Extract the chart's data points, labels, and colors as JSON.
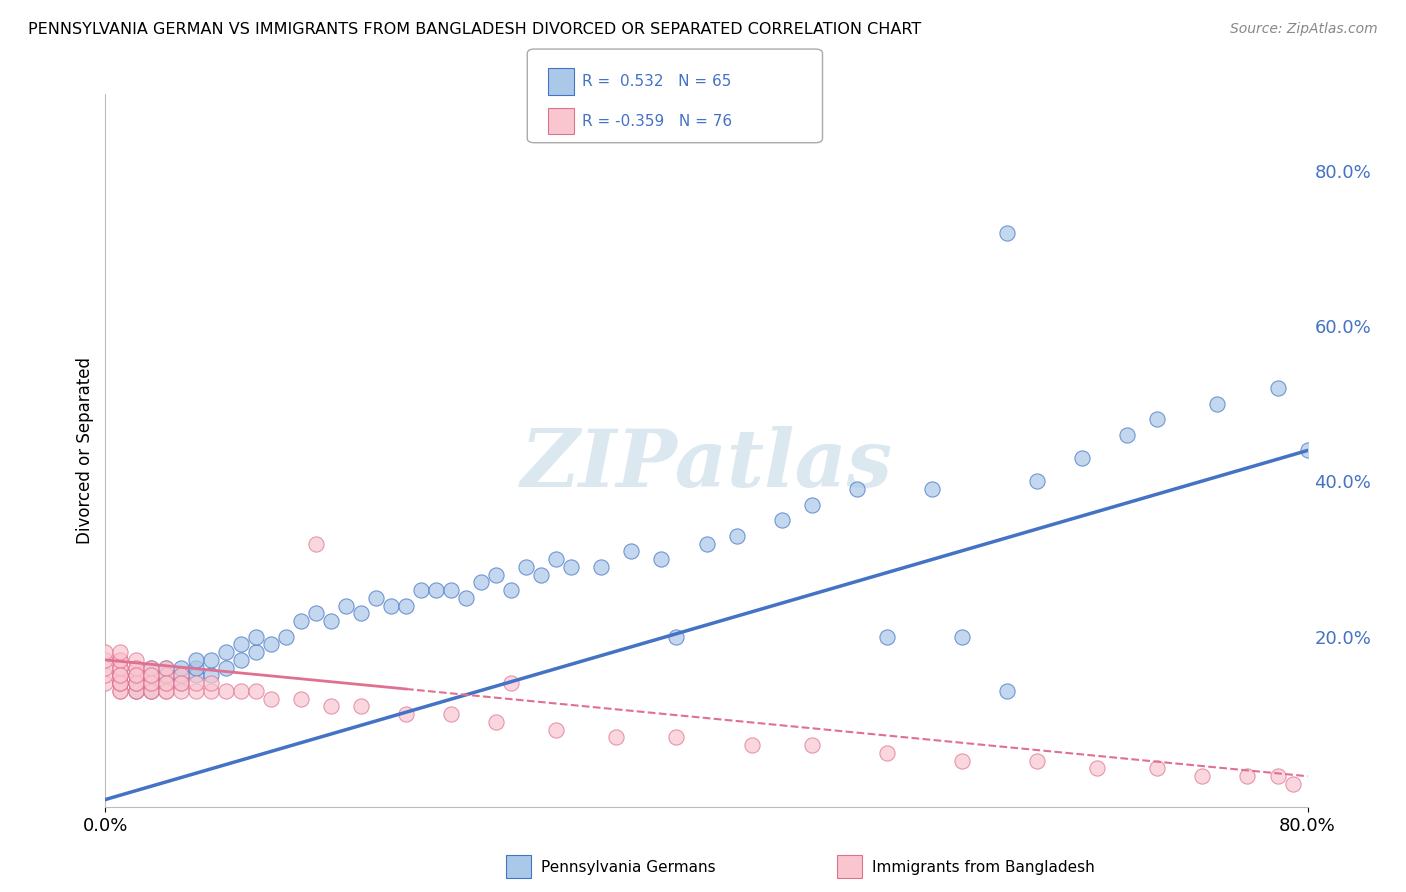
{
  "title": "PENNSYLVANIA GERMAN VS IMMIGRANTS FROM BANGLADESH DIVORCED OR SEPARATED CORRELATION CHART",
  "source": "Source: ZipAtlas.com",
  "ylabel": "Divorced or Separated",
  "right_ytick_labels": [
    "80.0%",
    "60.0%",
    "40.0%",
    "20.0%"
  ],
  "right_ytick_positions": [
    0.8,
    0.6,
    0.4,
    0.2
  ],
  "blue_scatter_color": "#aac8e8",
  "pink_scatter_color": "#f9c6d0",
  "blue_line_color": "#4472c4",
  "pink_line_color": "#e07090",
  "watermark_color": "#dce8f0",
  "background_color": "#ffffff",
  "grid_color": "#cccccc",
  "label_color": "#4472c4",
  "xmin": 0.0,
  "xmax": 0.8,
  "ymin": -0.02,
  "ymax": 0.9,
  "blue_trend_x": [
    0.0,
    0.8
  ],
  "blue_trend_y": [
    -0.01,
    0.44
  ],
  "pink_trend_x": [
    0.0,
    0.8
  ],
  "pink_trend_y": [
    0.17,
    0.02
  ],
  "blue_scatter_x": [
    0.01,
    0.02,
    0.02,
    0.03,
    0.03,
    0.03,
    0.04,
    0.04,
    0.04,
    0.05,
    0.05,
    0.05,
    0.06,
    0.06,
    0.06,
    0.07,
    0.07,
    0.08,
    0.08,
    0.09,
    0.09,
    0.1,
    0.1,
    0.11,
    0.12,
    0.13,
    0.14,
    0.15,
    0.16,
    0.17,
    0.18,
    0.19,
    0.2,
    0.21,
    0.22,
    0.23,
    0.24,
    0.25,
    0.26,
    0.27,
    0.28,
    0.29,
    0.3,
    0.31,
    0.33,
    0.35,
    0.37,
    0.38,
    0.4,
    0.42,
    0.45,
    0.47,
    0.5,
    0.52,
    0.55,
    0.57,
    0.6,
    0.62,
    0.65,
    0.68,
    0.7,
    0.74,
    0.78,
    0.8,
    0.6
  ],
  "blue_scatter_y": [
    0.14,
    0.13,
    0.15,
    0.13,
    0.14,
    0.16,
    0.14,
    0.15,
    0.16,
    0.14,
    0.15,
    0.16,
    0.15,
    0.16,
    0.17,
    0.15,
    0.17,
    0.16,
    0.18,
    0.17,
    0.19,
    0.18,
    0.2,
    0.19,
    0.2,
    0.22,
    0.23,
    0.22,
    0.24,
    0.23,
    0.25,
    0.24,
    0.24,
    0.26,
    0.26,
    0.26,
    0.25,
    0.27,
    0.28,
    0.26,
    0.29,
    0.28,
    0.3,
    0.29,
    0.29,
    0.31,
    0.3,
    0.2,
    0.32,
    0.33,
    0.35,
    0.37,
    0.39,
    0.2,
    0.39,
    0.2,
    0.13,
    0.4,
    0.43,
    0.46,
    0.48,
    0.5,
    0.52,
    0.44,
    0.72
  ],
  "pink_scatter_x": [
    0.0,
    0.0,
    0.0,
    0.0,
    0.0,
    0.01,
    0.01,
    0.01,
    0.01,
    0.01,
    0.01,
    0.01,
    0.01,
    0.01,
    0.01,
    0.01,
    0.01,
    0.01,
    0.02,
    0.02,
    0.02,
    0.02,
    0.02,
    0.02,
    0.02,
    0.02,
    0.02,
    0.02,
    0.02,
    0.03,
    0.03,
    0.03,
    0.03,
    0.03,
    0.03,
    0.03,
    0.04,
    0.04,
    0.04,
    0.04,
    0.04,
    0.04,
    0.05,
    0.05,
    0.05,
    0.05,
    0.06,
    0.06,
    0.07,
    0.07,
    0.08,
    0.09,
    0.1,
    0.11,
    0.13,
    0.15,
    0.17,
    0.2,
    0.23,
    0.26,
    0.3,
    0.34,
    0.38,
    0.43,
    0.47,
    0.52,
    0.57,
    0.62,
    0.66,
    0.7,
    0.73,
    0.76,
    0.78,
    0.79,
    0.14,
    0.27
  ],
  "pink_scatter_y": [
    0.14,
    0.15,
    0.16,
    0.17,
    0.18,
    0.13,
    0.14,
    0.15,
    0.16,
    0.17,
    0.13,
    0.14,
    0.15,
    0.16,
    0.17,
    0.18,
    0.14,
    0.15,
    0.13,
    0.14,
    0.15,
    0.16,
    0.17,
    0.13,
    0.14,
    0.15,
    0.16,
    0.14,
    0.15,
    0.13,
    0.14,
    0.15,
    0.16,
    0.13,
    0.14,
    0.15,
    0.13,
    0.14,
    0.15,
    0.16,
    0.13,
    0.14,
    0.14,
    0.15,
    0.13,
    0.14,
    0.13,
    0.14,
    0.13,
    0.14,
    0.13,
    0.13,
    0.13,
    0.12,
    0.12,
    0.11,
    0.11,
    0.1,
    0.1,
    0.09,
    0.08,
    0.07,
    0.07,
    0.06,
    0.06,
    0.05,
    0.04,
    0.04,
    0.03,
    0.03,
    0.02,
    0.02,
    0.02,
    0.01,
    0.32,
    0.14
  ]
}
